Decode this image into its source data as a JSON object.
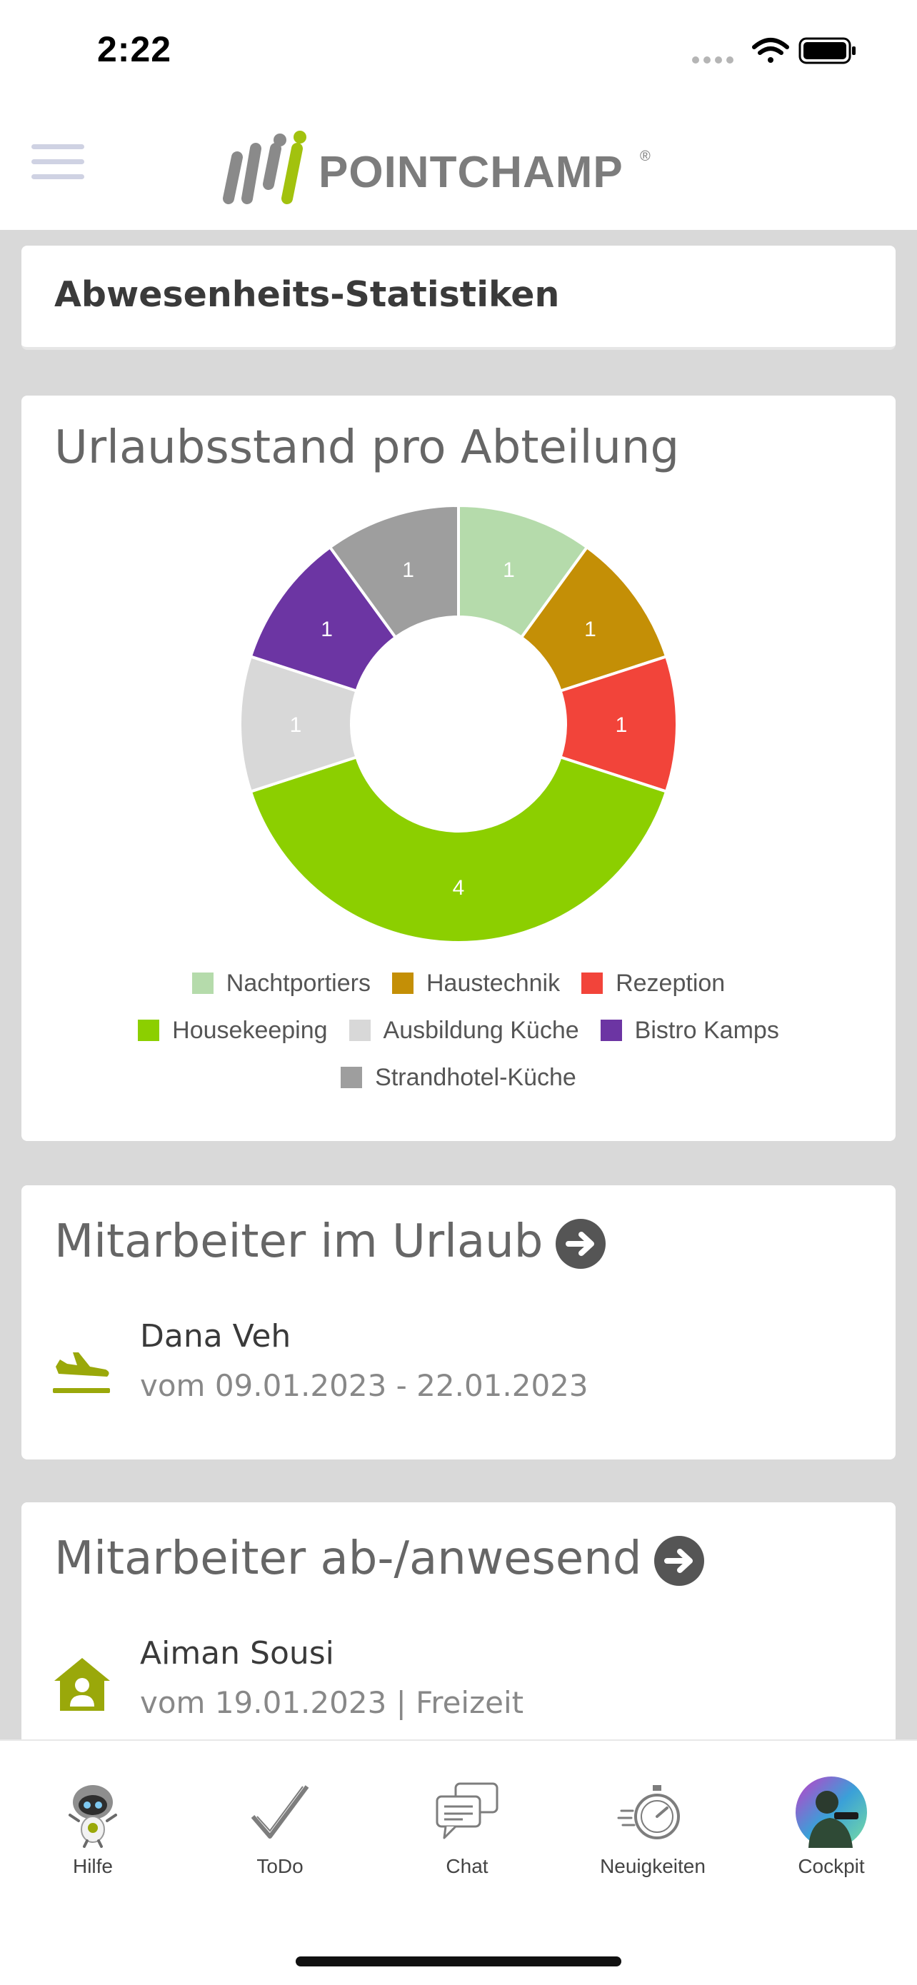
{
  "status_bar": {
    "time": "2:22"
  },
  "header": {
    "brand": "POINTCHAMP",
    "brand_mark": "®"
  },
  "page": {
    "title": "Abwesenheits-Statistiken"
  },
  "chart_section": {
    "title": "Urlaubsstand pro Abteilung"
  },
  "chart_data": {
    "type": "pie",
    "donut": true,
    "title": "Urlaubsstand pro Abteilung",
    "categories": [
      "Nachtportiers",
      "Haustechnik",
      "Rezeption",
      "Housekeeping",
      "Ausbildung Küche",
      "Bistro Kamps",
      "Strandhotel-Küche"
    ],
    "values": [
      1,
      1,
      1,
      4,
      1,
      1,
      1
    ],
    "colors": [
      "#b5dbab",
      "#c48f06",
      "#f2443a",
      "#8ccf00",
      "#d8d8d8",
      "#6c35a3",
      "#9e9e9e"
    ],
    "legend_position": "bottom"
  },
  "vacation_section": {
    "title": "Mitarbeiter im Urlaub",
    "icon": "airplane-landing-icon",
    "entries": [
      {
        "name": "Dana Veh",
        "date": "vom 09.01.2023 - 22.01.2023"
      }
    ]
  },
  "presence_section": {
    "title": "Mitarbeiter ab-/anwesend",
    "icon": "home-person-icon",
    "entries": [
      {
        "name": "Aiman Sousi",
        "date": "vom 19.01.2023 | Freizeit"
      }
    ]
  },
  "tab_bar": {
    "tabs": [
      {
        "label": "Hilfe",
        "icon": "robot-icon"
      },
      {
        "label": "ToDo",
        "icon": "checkmark-icon"
      },
      {
        "label": "Chat",
        "icon": "chat-bubbles-icon"
      },
      {
        "label": "Neuigkeiten",
        "icon": "stopwatch-icon"
      },
      {
        "label": "Cockpit",
        "icon": "avatar-icon"
      }
    ]
  },
  "colors": {
    "accent_green": "#8cad14",
    "text_gray": "#666666",
    "background": "#d9d9d9"
  }
}
